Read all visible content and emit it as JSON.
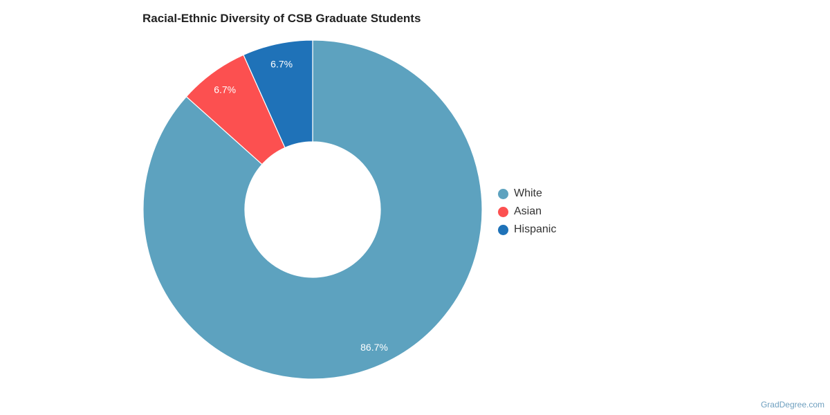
{
  "chart_data": {
    "type": "pie",
    "title": "Racial-Ethnic Diversity of CSB Graduate Students",
    "donut": true,
    "legend_position": "right",
    "slices": [
      {
        "label": "White",
        "value": 86.7,
        "display": "86.7%",
        "color": "#5da2bf"
      },
      {
        "label": "Asian",
        "value": 6.7,
        "display": "6.7%",
        "color": "#fc5050"
      },
      {
        "label": "Hispanic",
        "value": 6.7,
        "display": "6.7%",
        "color": "#1f72b8"
      }
    ]
  },
  "credit": "GradDegree.com"
}
